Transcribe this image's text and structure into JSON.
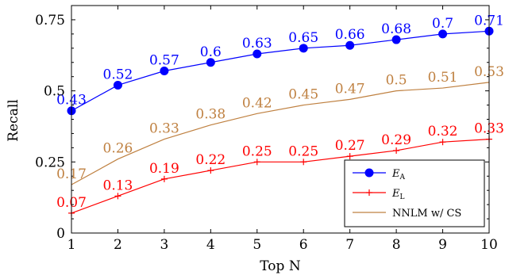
{
  "chart_data": {
    "type": "line",
    "xlabel": "Top N",
    "ylabel": "Recall",
    "x": [
      1,
      2,
      3,
      4,
      5,
      6,
      7,
      8,
      9,
      10
    ],
    "xlim": [
      1,
      10
    ],
    "ylim": [
      0,
      0.8
    ],
    "xticks": [
      "1",
      "2",
      "3",
      "4",
      "5",
      "6",
      "7",
      "8",
      "9",
      "10"
    ],
    "yticks": [
      {
        "value": 0,
        "label": "0"
      },
      {
        "value": 0.25,
        "label": "0.25"
      },
      {
        "value": 0.5,
        "label": "0.5"
      },
      {
        "value": 0.75,
        "label": "0.75"
      }
    ],
    "grid": false,
    "legend_position": "bottom-right",
    "series": [
      {
        "name": "E",
        "name_sub": "A",
        "color": "#0000ff",
        "marker": "circle",
        "values": [
          0.43,
          0.52,
          0.57,
          0.6,
          0.63,
          0.65,
          0.66,
          0.68,
          0.7,
          0.71
        ],
        "labels": [
          "0.43",
          "0.52",
          "0.57",
          "0.6",
          "0.63",
          "0.65",
          "0.66",
          "0.68",
          "0.7",
          "0.71"
        ]
      },
      {
        "name": "E",
        "name_sub": "L",
        "color": "#ff0000",
        "marker": "plus",
        "values": [
          0.07,
          0.13,
          0.19,
          0.22,
          0.25,
          0.25,
          0.27,
          0.29,
          0.32,
          0.33
        ],
        "labels": [
          "0.07",
          "0.13",
          "0.19",
          "0.22",
          "0.25",
          "0.25",
          "0.27",
          "0.29",
          "0.32",
          "0.33"
        ]
      },
      {
        "name": "NNLM w/ CS",
        "name_sub": "",
        "color": "#bf8040",
        "marker": "none",
        "values": [
          0.17,
          0.26,
          0.33,
          0.38,
          0.42,
          0.45,
          0.47,
          0.5,
          0.51,
          0.53
        ],
        "labels": [
          "0.17",
          "0.26",
          "0.33",
          "0.38",
          "0.42",
          "0.45",
          "0.47",
          "0.5",
          "0.51",
          "0.53"
        ]
      }
    ]
  }
}
